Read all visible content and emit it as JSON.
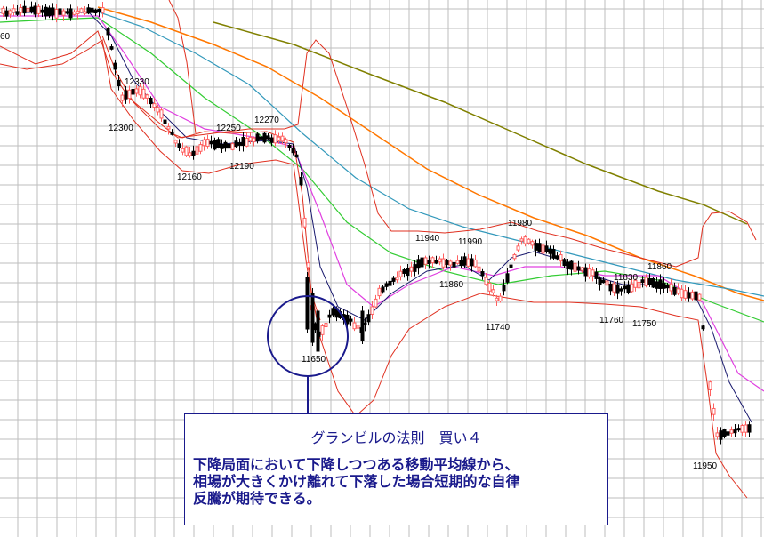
{
  "chart_data": {
    "type": "candlestick",
    "price_labels": [
      {
        "text": "12330"
      },
      {
        "text": "12300"
      },
      {
        "text": "12250"
      },
      {
        "text": "12270"
      },
      {
        "text": "12190"
      },
      {
        "text": "12160"
      },
      {
        "text": "11940"
      },
      {
        "text": "11990"
      },
      {
        "text": "11980"
      },
      {
        "text": "11860"
      },
      {
        "text": "11740"
      },
      {
        "text": "11830"
      },
      {
        "text": "11860"
      },
      {
        "text": "11760"
      },
      {
        "text": "11750"
      },
      {
        "text": "11650"
      },
      {
        "text": "11950"
      },
      {
        "text": "60"
      }
    ],
    "colors": {
      "grid": "#bdbdbd",
      "bollinger": "#e03020",
      "ma_short": "#1a1a6e",
      "ma_magenta": "#e040e0",
      "ma_green": "#33cc33",
      "ma_teal": "#3399bb",
      "ma_orange": "#ff7700",
      "ma_olive": "#808000",
      "up_candle": "#ff6060",
      "down_candle": "#000000",
      "annotation": "#1a1a8c"
    }
  },
  "annotation": {
    "title": "グランビルの法則　買い４",
    "body_lines": [
      "下降局面において下降しつつある移動平均線から、",
      "相場が大きくかけ離れて下落した場合短期的な自律",
      "反騰が期待できる。"
    ]
  }
}
